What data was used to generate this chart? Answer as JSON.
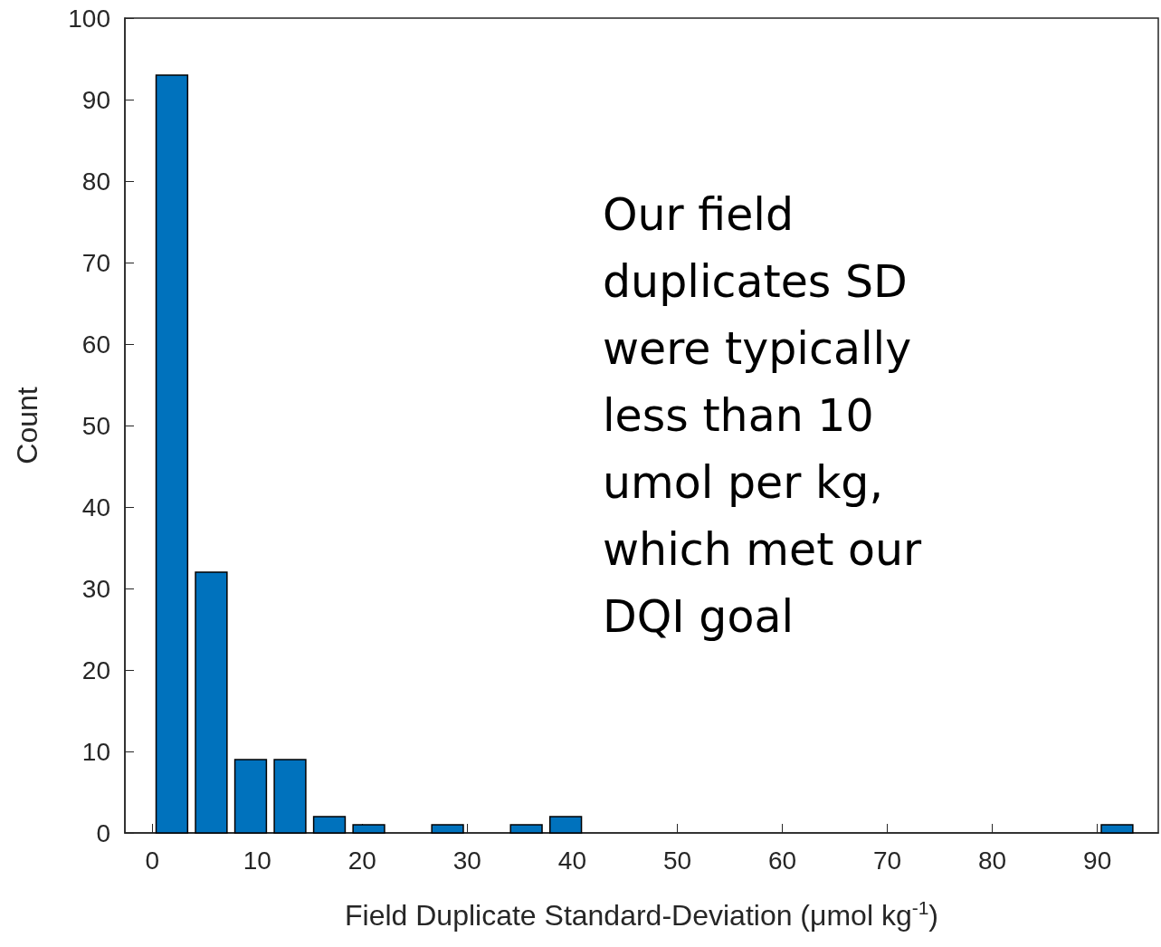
{
  "chart_data": {
    "type": "histogram",
    "bins": [
      0,
      3.75,
      7.5,
      11.25,
      15,
      18.75,
      22.5,
      26.25,
      30,
      33.75,
      37.5,
      41.25,
      45,
      48.75,
      52.5,
      56.25,
      60,
      63.75,
      67.5,
      71.25,
      75,
      78.75,
      82.5,
      86.25,
      90,
      93.75
    ],
    "values": [
      93,
      32,
      9,
      9,
      2,
      1,
      0,
      1,
      0,
      1,
      2,
      0,
      0,
      0,
      0,
      0,
      0,
      0,
      0,
      0,
      0,
      0,
      0,
      0,
      1
    ],
    "color": "#0072bd",
    "xlabel": "Field Duplicate Standard-Deviation (μmol kg$^{-1}$)",
    "ylabel": "Count",
    "xlim": [
      -2.6,
      95.8
    ],
    "xticks": [
      0,
      10,
      20,
      30,
      40,
      50,
      60,
      70,
      80,
      90
    ],
    "ylim": [
      0,
      100
    ],
    "yticks": [
      0,
      10,
      20,
      30,
      40,
      50,
      60,
      70,
      80,
      90,
      100
    ],
    "grid": false,
    "annotations": [
      "Our field duplicates SD were typically less than 10 umol per kg, which met our DQI goal"
    ]
  }
}
